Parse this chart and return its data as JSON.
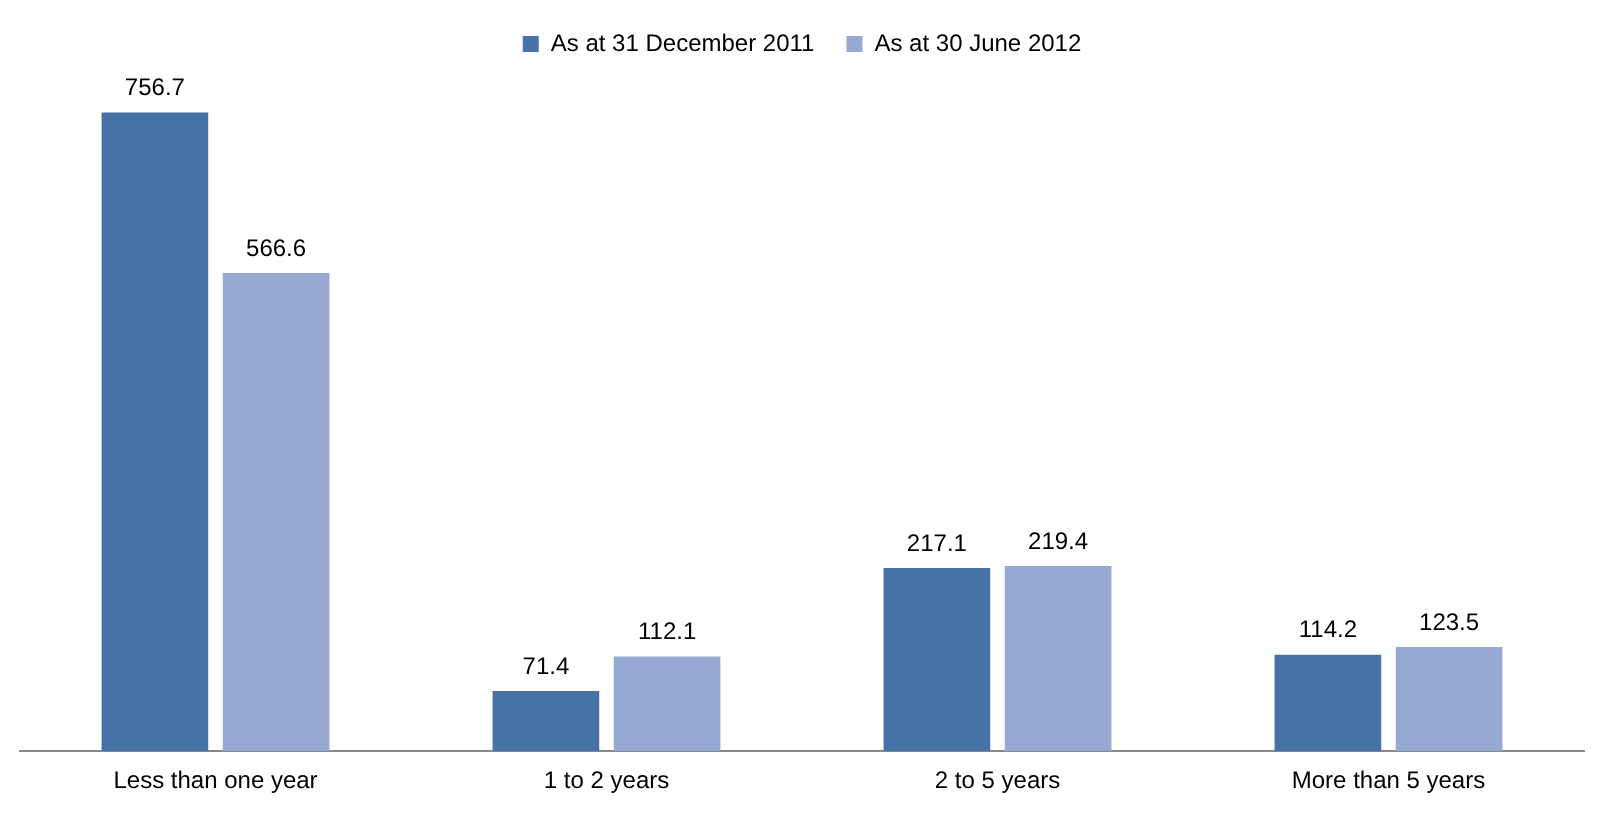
{
  "chart_data": {
    "type": "bar",
    "categories": [
      "Less than one year",
      "1 to 2 years",
      "2 to 5 years",
      "More than 5 years"
    ],
    "series": [
      {
        "name": "As at 31 December 2011",
        "color": "#4672a8",
        "values": [
          756.7,
          71.4,
          217.1,
          114.2
        ]
      },
      {
        "name": "As at 30 June 2012",
        "color": "#95a9d2",
        "values": [
          566.6,
          112.1,
          219.4,
          123.5
        ]
      }
    ],
    "data_labels": true,
    "legend": "top",
    "grid": false
  }
}
